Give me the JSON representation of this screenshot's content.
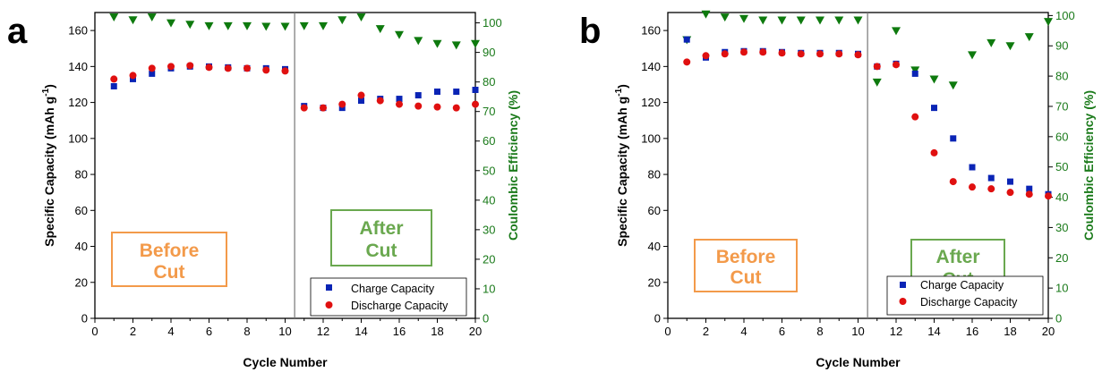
{
  "colors": {
    "charge": "#0a24b5",
    "discharge": "#e01010",
    "coulombic": "#0e7a0e",
    "before": "#f39a4a",
    "after": "#6aa84f",
    "axis_right": "#1a7a1a"
  },
  "chart_data": [
    {
      "panel_label": "a",
      "type": "scatter",
      "xlabel": "Cycle Number",
      "ylabel": "Specific Capacity (mAh g-1)",
      "ylabel_parts": [
        "Specific Capacity (mAh g",
        "-1",
        ")"
      ],
      "y2label": "Coulombic Efficiency (%)",
      "xlim": [
        0,
        20
      ],
      "ylim": [
        0,
        170
      ],
      "y2lim": [
        0,
        103.5
      ],
      "xticks": [
        0,
        2,
        4,
        6,
        8,
        10,
        12,
        14,
        16,
        18,
        20
      ],
      "yticks": [
        0,
        20,
        40,
        60,
        80,
        100,
        120,
        140,
        160
      ],
      "y2ticks": [
        0,
        10,
        20,
        30,
        40,
        50,
        60,
        70,
        80,
        90,
        100
      ],
      "divider_x": 10.5,
      "before_label": [
        "Before",
        "Cut"
      ],
      "after_label": [
        "After",
        "Cut"
      ],
      "legend": [
        "Charge Capacity",
        "Discharge Capacity"
      ],
      "series": [
        {
          "name": "Charge Capacity",
          "x": [
            1,
            2,
            3,
            4,
            5,
            6,
            7,
            8,
            9,
            10,
            11,
            12,
            13,
            14,
            15,
            16,
            17,
            18,
            19,
            20
          ],
          "values": [
            129,
            133,
            136,
            139,
            140,
            140,
            139.5,
            139,
            139,
            138.5,
            118,
            117,
            117,
            121,
            122,
            122,
            124,
            126,
            126,
            127
          ]
        },
        {
          "name": "Discharge Capacity",
          "x": [
            1,
            2,
            3,
            4,
            5,
            6,
            7,
            8,
            9,
            10,
            11,
            12,
            13,
            14,
            15,
            16,
            17,
            18,
            19,
            20
          ],
          "values": [
            133,
            135,
            139,
            140,
            140.5,
            139.5,
            139,
            139,
            138,
            137.5,
            117,
            117,
            119,
            124,
            121,
            119,
            118,
            117.5,
            117,
            119
          ]
        },
        {
          "name": "Coulombic Efficiency",
          "x": [
            1,
            2,
            3,
            4,
            5,
            6,
            7,
            8,
            9,
            10,
            11,
            12,
            13,
            14,
            15,
            16,
            17,
            18,
            19,
            20
          ],
          "values": [
            102,
            101,
            102,
            100,
            99.5,
            99,
            99,
            99,
            98.8,
            98.8,
            99,
            99,
            101,
            102,
            98,
            96,
            94,
            93,
            92.5,
            93
          ]
        }
      ]
    },
    {
      "panel_label": "b",
      "type": "scatter",
      "xlabel": "Cycle Number",
      "ylabel": "Specific Capacity (mAh g-1)",
      "ylabel_parts": [
        "Specific Capacity (mAh g",
        "-1",
        ")"
      ],
      "y2label": "Coulombic Efficiency (%)",
      "xlim": [
        0,
        20
      ],
      "ylim": [
        0,
        170
      ],
      "y2lim": [
        0,
        101
      ],
      "xticks": [
        0,
        2,
        4,
        6,
        8,
        10,
        12,
        14,
        16,
        18,
        20
      ],
      "yticks": [
        0,
        20,
        40,
        60,
        80,
        100,
        120,
        140,
        160
      ],
      "y2ticks": [
        0,
        10,
        20,
        30,
        40,
        50,
        60,
        70,
        80,
        90,
        100
      ],
      "divider_x": 10.5,
      "before_label": [
        "Before",
        "Cut"
      ],
      "after_label": [
        "After",
        "Cut"
      ],
      "legend": [
        "Charge Capacity",
        "Discharge Capacity"
      ],
      "series": [
        {
          "name": "Charge Capacity",
          "x": [
            1,
            2,
            3,
            4,
            5,
            6,
            7,
            8,
            9,
            10,
            11,
            12,
            13,
            14,
            15,
            16,
            17,
            18,
            19,
            20
          ],
          "values": [
            155,
            145,
            148,
            148.5,
            148.5,
            148,
            147.5,
            147.5,
            147.5,
            147,
            140,
            141.5,
            136,
            117,
            100,
            84,
            78,
            76,
            72,
            69
          ]
        },
        {
          "name": "Discharge Capacity",
          "x": [
            1,
            2,
            3,
            4,
            5,
            6,
            7,
            8,
            9,
            10,
            11,
            12,
            13,
            14,
            15,
            16,
            17,
            18,
            19,
            20
          ],
          "values": [
            142.5,
            146,
            147,
            148,
            148,
            147.5,
            147,
            147,
            147,
            146.5,
            140,
            141,
            112,
            92,
            76,
            73,
            72,
            70,
            69,
            68
          ]
        },
        {
          "name": "Coulombic Efficiency",
          "x": [
            1,
            2,
            3,
            4,
            5,
            6,
            7,
            8,
            9,
            10,
            11,
            12,
            13,
            14,
            15,
            16,
            17,
            18,
            19,
            20
          ],
          "values": [
            92,
            100.5,
            99.5,
            99,
            98.5,
            98.5,
            98.5,
            98.5,
            98.5,
            98.5,
            78,
            95,
            82,
            79,
            77,
            87,
            91,
            90,
            93,
            98
          ]
        }
      ]
    }
  ]
}
